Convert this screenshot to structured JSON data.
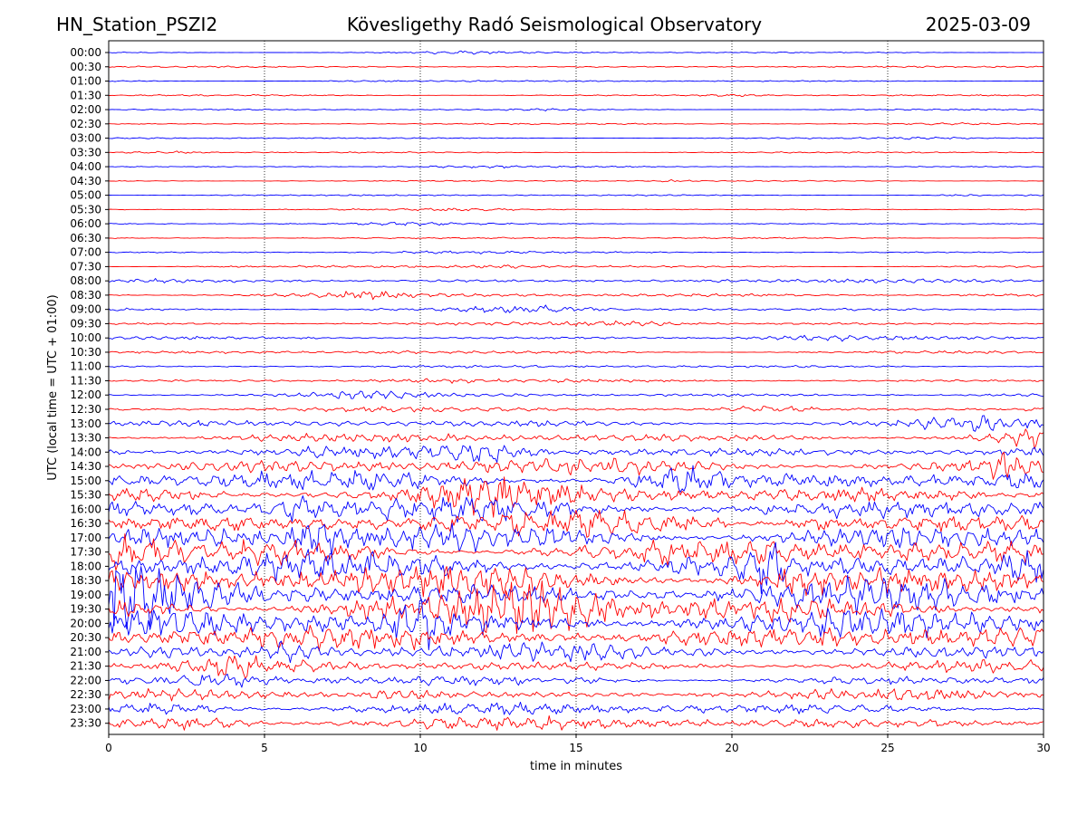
{
  "header": {
    "station": "HN_Station_PSZI2",
    "observatory": "Kövesligethy Radó Seismological Observatory",
    "date": "2025-03-09"
  },
  "chart_data": {
    "type": "line",
    "chart_kind": "helicorder",
    "xlabel": "time in minutes",
    "ylabel": "UTC (local time = UTC + 01:00)",
    "xlim": [
      0,
      30
    ],
    "xticks": [
      0,
      5,
      10,
      15,
      20,
      25,
      30
    ],
    "grid": "vertical dotted at 5-minute intervals",
    "row_labels": [
      "00:00",
      "00:30",
      "01:00",
      "01:30",
      "02:00",
      "02:30",
      "03:00",
      "03:30",
      "04:00",
      "04:30",
      "05:00",
      "05:30",
      "06:00",
      "06:30",
      "07:00",
      "07:30",
      "08:00",
      "08:30",
      "09:00",
      "09:30",
      "10:00",
      "10:30",
      "11:00",
      "11:30",
      "12:00",
      "12:30",
      "13:00",
      "13:30",
      "14:00",
      "14:30",
      "15:00",
      "15:30",
      "16:00",
      "16:30",
      "17:00",
      "17:30",
      "18:00",
      "18:30",
      "19:00",
      "19:30",
      "20:00",
      "20:30",
      "21:00",
      "21:30",
      "22:00",
      "22:30",
      "23:00",
      "23:30"
    ],
    "row_colors": [
      "#0000ff",
      "#ff0000"
    ],
    "relative_amplitude": [
      0.12,
      0.12,
      0.12,
      0.12,
      0.11,
      0.11,
      0.11,
      0.12,
      0.11,
      0.11,
      0.12,
      0.12,
      0.12,
      0.13,
      0.15,
      0.18,
      0.28,
      0.32,
      0.28,
      0.25,
      0.25,
      0.22,
      0.22,
      0.25,
      0.3,
      0.4,
      0.55,
      0.75,
      0.95,
      1.2,
      1.5,
      1.6,
      1.8,
      1.9,
      2.0,
      2.1,
      2.3,
      2.4,
      2.4,
      2.3,
      2.2,
      2.0,
      1.4,
      0.9,
      0.75,
      0.8,
      0.95,
      1.05
    ]
  }
}
